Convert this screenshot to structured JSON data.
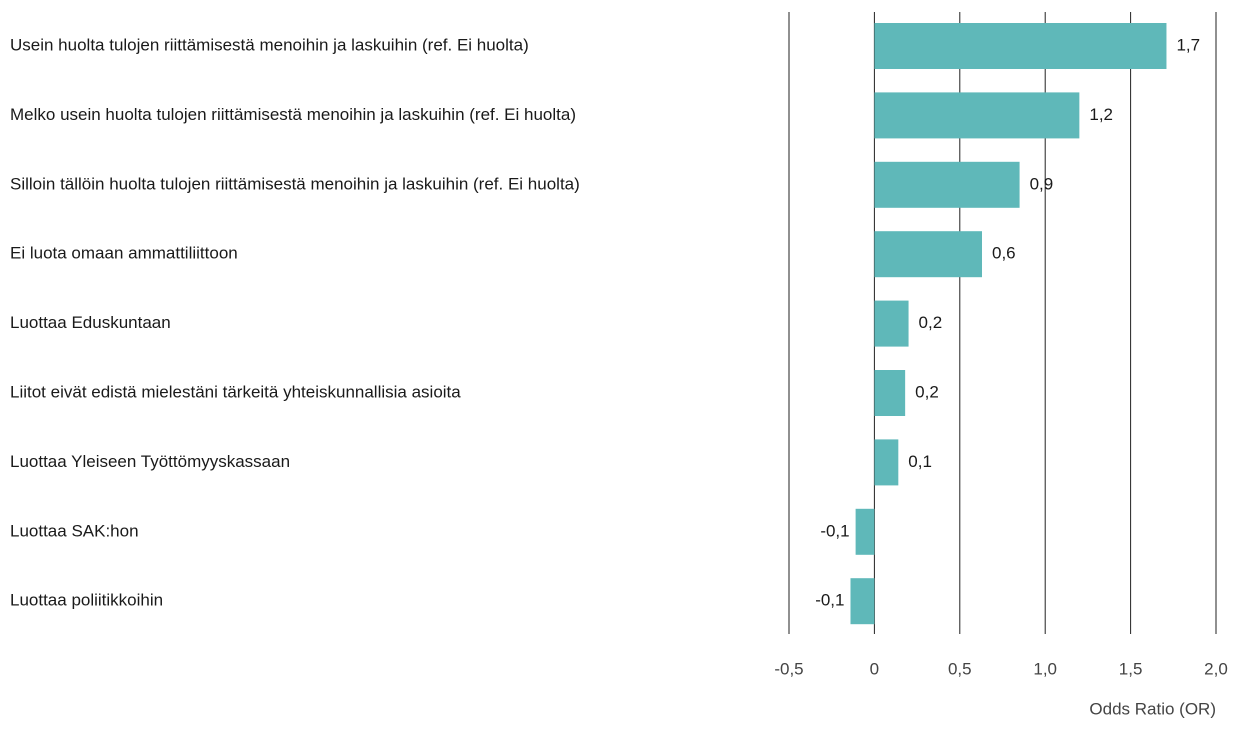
{
  "chart_data": {
    "type": "bar",
    "orientation": "horizontal",
    "categories": [
      "Usein huolta tulojen riittämisestä menoihin ja laskuihin (ref. Ei huolta)",
      "Melko usein huolta tulojen riittämisestä menoihin ja laskuihin (ref. Ei huolta)",
      "Silloin tällöin huolta tulojen riittämisestä menoihin ja laskuihin (ref. Ei huolta)",
      "Ei luota omaan ammattiliittoon",
      "Luottaa Eduskuntaan",
      "Liitot eivät edistä mielestäni tärkeitä yhteiskunnallisia asioita",
      "Luottaa Yleiseen Työttömyyskassaan",
      "Luottaa SAK:hon",
      "Luottaa poliitikkoihin"
    ],
    "values": [
      1.71,
      1.2,
      0.85,
      0.63,
      0.2,
      0.18,
      0.14,
      -0.11,
      -0.14
    ],
    "value_labels": [
      "1,7",
      "1,2",
      "0,9",
      "0,6",
      "0,2",
      "0,2",
      "0,1",
      "-0,1",
      "-0,1"
    ],
    "color": "#5fb8b9",
    "xlim": [
      -0.5,
      2.0
    ],
    "xticks": [
      {
        "value": -0.5,
        "label": "-0,5"
      },
      0,
      {
        "value": 0.5,
        "label": "0,5"
      },
      {
        "value": 1.0,
        "label": "1,0"
      },
      {
        "value": 1.5,
        "label": "1,5"
      },
      {
        "value": 2.0,
        "label": "2,0"
      }
    ],
    "x_label": "Odds Ratio (OR)",
    "grid": true
  }
}
